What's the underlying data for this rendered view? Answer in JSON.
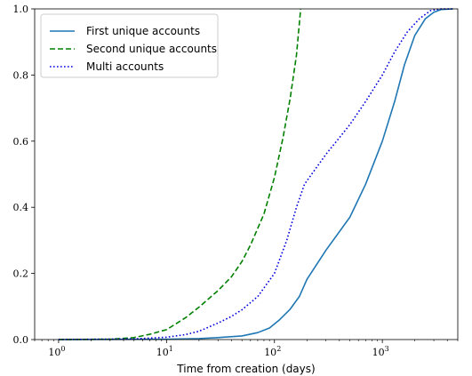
{
  "chart_data": {
    "type": "line",
    "xlabel": "Time from creation (days)",
    "ylabel": "",
    "xscale": "log",
    "xlim": [
      0.6,
      5000
    ],
    "ylim": [
      0,
      1.0
    ],
    "grid": false,
    "legend_placement": "top-left",
    "x_ticks": [
      {
        "value": 1,
        "base": "10",
        "exp": "0"
      },
      {
        "value": 10,
        "base": "10",
        "exp": "1"
      },
      {
        "value": 100,
        "base": "10",
        "exp": "2"
      },
      {
        "value": 1000,
        "base": "10",
        "exp": "3"
      }
    ],
    "y_ticks": [
      {
        "value": 0.0,
        "label": "0.0"
      },
      {
        "value": 0.2,
        "label": "0.2"
      },
      {
        "value": 0.4,
        "label": "0.4"
      },
      {
        "value": 0.6,
        "label": "0.6"
      },
      {
        "value": 0.8,
        "label": "0.8"
      },
      {
        "value": 1.0,
        "label": "1.0"
      }
    ],
    "series": [
      {
        "name": "First unique accounts",
        "color": "#1f77b4",
        "style": "solid",
        "x": [
          1,
          10,
          20,
          30,
          50,
          70,
          90,
          110,
          140,
          170,
          200,
          300,
          500,
          700,
          1000,
          1300,
          1600,
          2000,
          2500,
          3000,
          3500,
          4500
        ],
        "y": [
          0,
          0.001,
          0.003,
          0.006,
          0.011,
          0.021,
          0.035,
          0.058,
          0.092,
          0.13,
          0.182,
          0.27,
          0.37,
          0.47,
          0.6,
          0.72,
          0.83,
          0.92,
          0.97,
          0.99,
          0.998,
          1.0
        ]
      },
      {
        "name": "Second unique accounts",
        "color": "#008000",
        "style": "dashed",
        "x": [
          1,
          3,
          5,
          7,
          10,
          12,
          15,
          20,
          30,
          40,
          50,
          60,
          80,
          100,
          120,
          140,
          160,
          175
        ],
        "y": [
          0,
          0.001,
          0.006,
          0.016,
          0.03,
          0.046,
          0.066,
          0.098,
          0.148,
          0.19,
          0.236,
          0.286,
          0.38,
          0.49,
          0.61,
          0.73,
          0.86,
          1.0
        ]
      },
      {
        "name": "Multi accounts",
        "color": "#0000dd",
        "style": "dotted",
        "x": [
          1,
          5,
          10,
          15,
          20,
          30,
          40,
          50,
          70,
          100,
          130,
          160,
          190,
          300,
          500,
          700,
          1000,
          1300,
          1700,
          2200,
          2800,
          3500,
          4500
        ],
        "y": [
          0,
          0.002,
          0.007,
          0.015,
          0.025,
          0.05,
          0.07,
          0.09,
          0.13,
          0.2,
          0.3,
          0.4,
          0.47,
          0.56,
          0.65,
          0.72,
          0.8,
          0.87,
          0.93,
          0.97,
          0.995,
          1.0,
          1.0
        ]
      }
    ]
  }
}
